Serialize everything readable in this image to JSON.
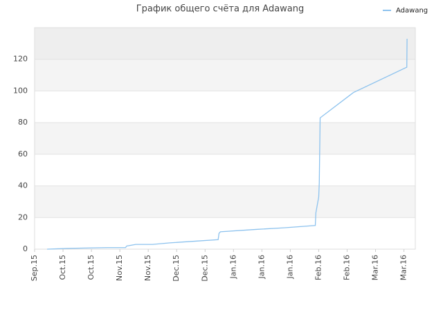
{
  "chart_data": {
    "type": "line",
    "title": "График общего счёта для Adawang",
    "x": [
      0.44,
      1.15,
      2.56,
      3.2,
      3.24,
      3.56,
      4.15,
      4.76,
      5.61,
      6.46,
      6.49,
      6.54,
      7.8,
      8.78,
      9.88,
      9.9,
      9.95,
      10.0,
      10.02,
      10.05,
      11.22,
      13.1,
      13.11
    ],
    "series": [
      {
        "name": "Adawang",
        "color": "#8cc2ee",
        "values": [
          0,
          0.5,
          1,
          1,
          2,
          3,
          3,
          4,
          5,
          6,
          10,
          11,
          12.5,
          13.5,
          15,
          23,
          28,
          33,
          42,
          83,
          99,
          115,
          133
        ]
      }
    ],
    "xlim": [
      0,
      13.4
    ],
    "xticks": [
      {
        "value": 0,
        "label": "Sep.15"
      },
      {
        "value": 1,
        "label": "Oct.15"
      },
      {
        "value": 2,
        "label": "Oct.15"
      },
      {
        "value": 3,
        "label": "Nov.15"
      },
      {
        "value": 4,
        "label": "Nov.15"
      },
      {
        "value": 5,
        "label": "Dec.15"
      },
      {
        "value": 6,
        "label": "Dec.15"
      },
      {
        "value": 7,
        "label": "Jan.16"
      },
      {
        "value": 8,
        "label": "Jan.16"
      },
      {
        "value": 9,
        "label": "Jan.16"
      },
      {
        "value": 10,
        "label": "Feb.16"
      },
      {
        "value": 11,
        "label": "Feb.16"
      },
      {
        "value": 12,
        "label": "Mar.16"
      },
      {
        "value": 13,
        "label": "Mar.16"
      }
    ],
    "ylim": [
      0,
      140
    ],
    "yticks": [
      0,
      20,
      40,
      60,
      80,
      100,
      120
    ],
    "grid": true,
    "legend": "top-right"
  }
}
